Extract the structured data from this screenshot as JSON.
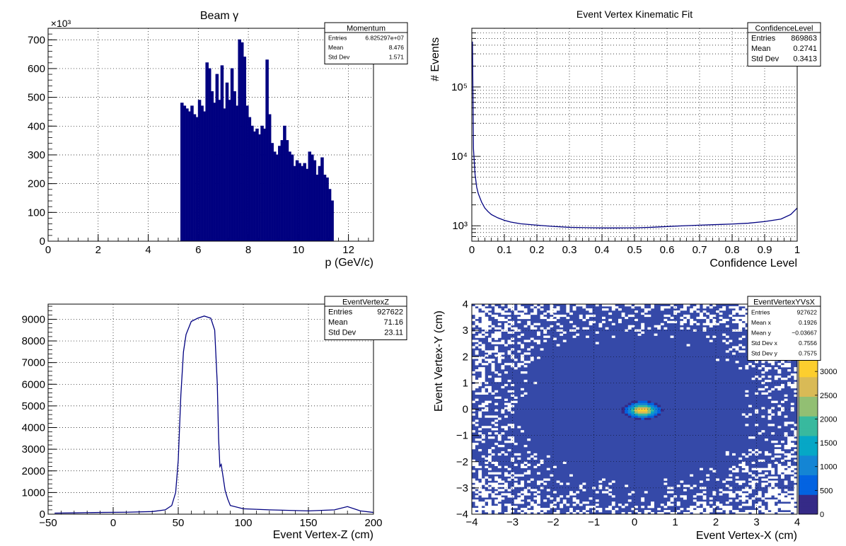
{
  "chart_data": [
    {
      "type": "bar",
      "title": "Beam γ",
      "xlabel": "p (GeV/c)",
      "ylabel": "",
      "y_multiplier_label": "×10³",
      "xlim": [
        0,
        13
      ],
      "ylim": [
        0,
        740
      ],
      "xticks": [
        "0",
        "2",
        "4",
        "6",
        "8",
        "10",
        "12"
      ],
      "yticks": [
        "0",
        "100",
        "200",
        "300",
        "400",
        "500",
        "600",
        "700"
      ],
      "grid": true,
      "stats": {
        "name": "Momentum",
        "rows": [
          [
            "Entries",
            "6.825297e+07"
          ],
          [
            "Mean",
            "8.476"
          ],
          [
            "Std Dev",
            "1.571"
          ]
        ]
      },
      "x": [
        5.35,
        5.45,
        5.55,
        5.65,
        5.75,
        5.85,
        5.95,
        6.05,
        6.15,
        6.25,
        6.35,
        6.45,
        6.55,
        6.65,
        6.75,
        6.85,
        6.95,
        7.05,
        7.15,
        7.25,
        7.35,
        7.45,
        7.55,
        7.65,
        7.75,
        7.85,
        7.95,
        8.05,
        8.15,
        8.25,
        8.35,
        8.45,
        8.55,
        8.65,
        8.75,
        8.85,
        8.95,
        9.05,
        9.15,
        9.25,
        9.35,
        9.45,
        9.55,
        9.65,
        9.75,
        9.85,
        9.95,
        10.05,
        10.15,
        10.25,
        10.35,
        10.45,
        10.55,
        10.65,
        10.75,
        10.85,
        10.95,
        11.05,
        11.15,
        11.25,
        11.35
      ],
      "values": [
        480,
        470,
        460,
        450,
        470,
        440,
        430,
        490,
        470,
        450,
        620,
        600,
        520,
        480,
        580,
        490,
        610,
        460,
        550,
        490,
        600,
        520,
        470,
        700,
        690,
        640,
        470,
        430,
        400,
        380,
        390,
        370,
        400,
        390,
        630,
        440,
        340,
        310,
        300,
        330,
        350,
        400,
        350,
        310,
        300,
        260,
        280,
        270,
        260,
        270,
        250,
        310,
        300,
        280,
        230,
        260,
        290,
        230,
        220,
        180,
        140
      ]
    },
    {
      "type": "line",
      "title": "Event Vertex Kinematic Fit",
      "xlabel": "Confidence Level",
      "ylabel": "# Events",
      "xlim": [
        0,
        1
      ],
      "ylim": [
        600,
        700000
      ],
      "yscale": "log",
      "xticks": [
        "0",
        "0.1",
        "0.2",
        "0.3",
        "0.4",
        "0.5",
        "0.6",
        "0.7",
        "0.8",
        "0.9",
        "1"
      ],
      "yticks": [
        "10³",
        "10⁴",
        "10⁵"
      ],
      "grid": true,
      "stats": {
        "name": "ConfidenceLevel",
        "rows": [
          [
            "Entries",
            "869863"
          ],
          [
            "Mean",
            "0.2741"
          ],
          [
            "Std Dev",
            "0.3413"
          ]
        ]
      },
      "x": [
        0.002,
        0.005,
        0.01,
        0.015,
        0.02,
        0.03,
        0.04,
        0.05,
        0.06,
        0.08,
        0.1,
        0.12,
        0.15,
        0.2,
        0.25,
        0.3,
        0.35,
        0.4,
        0.45,
        0.5,
        0.55,
        0.6,
        0.65,
        0.7,
        0.75,
        0.8,
        0.85,
        0.9,
        0.95,
        0.98,
        1.0
      ],
      "values": [
        450000,
        13000,
        5500,
        3600,
        2900,
        2200,
        1800,
        1600,
        1450,
        1300,
        1200,
        1130,
        1070,
        1020,
        980,
        950,
        940,
        930,
        930,
        935,
        950,
        975,
        1000,
        1020,
        1040,
        1060,
        1090,
        1150,
        1250,
        1450,
        1800
      ]
    },
    {
      "type": "line",
      "title": "",
      "xlabel": "Event Vertex-Z (cm)",
      "ylabel": "",
      "xlim": [
        -50,
        200
      ],
      "ylim": [
        0,
        9700
      ],
      "xticks": [
        "−50",
        "0",
        "50",
        "100",
        "150",
        "200"
      ],
      "yticks": [
        "0",
        "1000",
        "2000",
        "3000",
        "4000",
        "5000",
        "6000",
        "7000",
        "8000",
        "9000"
      ],
      "grid": true,
      "stats": {
        "name": "EventVertexZ",
        "rows": [
          [
            "Entries",
            "927622"
          ],
          [
            "Mean",
            "71.16"
          ],
          [
            "Std Dev",
            "23.11"
          ]
        ]
      },
      "x": [
        -45,
        -30,
        -10,
        10,
        30,
        40,
        45,
        48,
        50,
        52,
        54,
        56,
        60,
        65,
        70,
        75,
        78,
        80,
        81,
        82,
        83,
        84,
        85,
        86,
        88,
        90,
        100,
        120,
        150,
        170,
        180,
        190,
        200
      ],
      "values": [
        50,
        60,
        80,
        90,
        120,
        200,
        400,
        1000,
        2500,
        5500,
        7500,
        8300,
        8900,
        9050,
        9150,
        9050,
        8500,
        6000,
        3500,
        2200,
        2300,
        1900,
        1500,
        1100,
        700,
        400,
        250,
        200,
        150,
        200,
        350,
        150,
        80
      ]
    },
    {
      "type": "heatmap",
      "title": "",
      "xlabel": "Event Vertex-X (cm)",
      "ylabel": "Event Vertex-Y (cm)",
      "xlim": [
        -4,
        4
      ],
      "ylim": [
        -4,
        4
      ],
      "xticks": [
        "−4",
        "−3",
        "−2",
        "−1",
        "0",
        "1",
        "2",
        "3",
        "4"
      ],
      "yticks": [
        "−4",
        "−3",
        "−2",
        "−1",
        "0",
        "1",
        "2",
        "3",
        "4"
      ],
      "zlim": [
        0,
        3300
      ],
      "zticks": [
        "0",
        "500",
        "1000",
        "1500",
        "2000",
        "2500",
        "3000"
      ],
      "center": [
        0.1926,
        -0.03667
      ],
      "sigma": [
        0.22,
        0.16
      ],
      "peak": 3200,
      "background_density": 4,
      "grid": true,
      "stats": {
        "name": "EventVertexYVsX",
        "rows": [
          [
            "Entries",
            "927622"
          ],
          [
            "Mean x",
            "0.1926"
          ],
          [
            "Mean y",
            "−0.03667"
          ],
          [
            "Std Dev x",
            "0.7556"
          ],
          [
            "Std Dev y",
            "0.7575"
          ]
        ]
      }
    }
  ],
  "colors": {
    "line": "#000080",
    "background": "#ffffff",
    "grid": "#000000",
    "heatmap_base": "#3549a8",
    "palette": [
      "#352a87",
      "#0363e1",
      "#1485d4",
      "#06a7c6",
      "#38b99e",
      "#92bf73",
      "#d9ba56",
      "#fcce2e",
      "#f9fb0e"
    ]
  }
}
